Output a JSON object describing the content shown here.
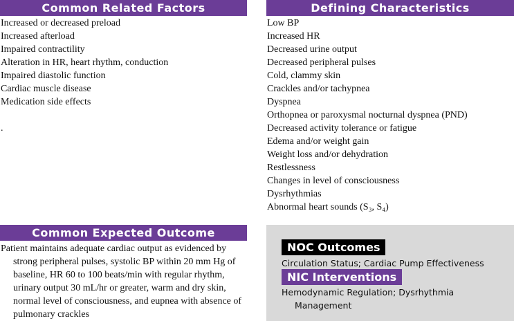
{
  "related_factors": {
    "title": "Common Related Factors",
    "items": [
      "Increased or decreased preload",
      "Increased afterload",
      "Impaired contractility",
      "Alteration in HR, heart rhythm, conduction",
      "Impaired diastolic function",
      "Cardiac muscle disease",
      "Medication side effects"
    ],
    "stray_mark": "."
  },
  "defining_characteristics": {
    "title": "Defining Characteristics",
    "items": [
      "Low BP",
      "Increased HR",
      "Decreased urine output",
      "Decreased peripheral pulses",
      "Cold, clammy skin",
      "Crackles and/or tachypnea",
      "Dyspnea",
      "Orthopnea or paroxysmal nocturnal dyspnea (PND)",
      "Decreased activity tolerance or fatigue",
      "Edema and/or weight gain",
      "Weight loss and/or dehydration",
      "Restlessness",
      "Changes in level of consciousness",
      "Dysrhythmias",
      "Abnormal heart sounds (S₃, S₄)"
    ]
  },
  "expected_outcome": {
    "title": "Common Expected Outcome",
    "text": "Patient maintains adequate cardiac output as evidenced by strong peripheral pulses, systolic BP within 20 mm Hg of baseline, HR 60 to 100 beats/min with regular rhythm, urinary output 30 mL/hr or greater, warm and dry skin, normal level of consciousness, and eupnea with absence of pulmonary crackles"
  },
  "noc": {
    "title": "NOC Outcomes",
    "text": "Circulation Status; Cardiac Pump Effectiveness"
  },
  "nic": {
    "title": "NIC Interventions",
    "text": "Hemodynamic Regulation; Dysrhythmia Management"
  }
}
